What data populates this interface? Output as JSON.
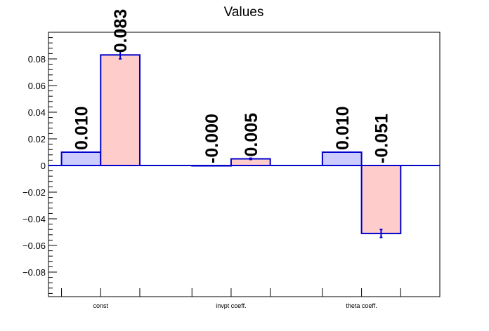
{
  "chart_data": {
    "type": "bar",
    "title": "Values",
    "categories": [
      "const",
      "invpt coeff.",
      "theta coeff."
    ],
    "ylim": [
      -0.1,
      0.1
    ],
    "yticks": [
      -0.08,
      -0.06,
      -0.04,
      -0.02,
      0,
      0.02,
      0.04,
      0.06,
      0.08
    ],
    "ytick_labels": [
      "−0.08",
      "−0.06",
      "−0.04",
      "−0.02",
      "0",
      "0.02",
      "0.04",
      "0.06",
      "0.08"
    ],
    "grid": false,
    "legend": "none",
    "series": [
      {
        "color": "#ccccff",
        "values": [
          0.01,
          -0.0001,
          0.01
        ],
        "errors": [
          0,
          0,
          0
        ],
        "labels": [
          "0.010",
          "-0.000",
          "0.010"
        ]
      },
      {
        "color": "#ffcccc",
        "values": [
          0.083,
          0.005,
          -0.051
        ],
        "errors": [
          0.003,
          0.0005,
          0.003
        ],
        "labels": [
          "0.083",
          "0.005",
          "-0.051"
        ]
      }
    ],
    "outline_color": "#0000cc"
  }
}
